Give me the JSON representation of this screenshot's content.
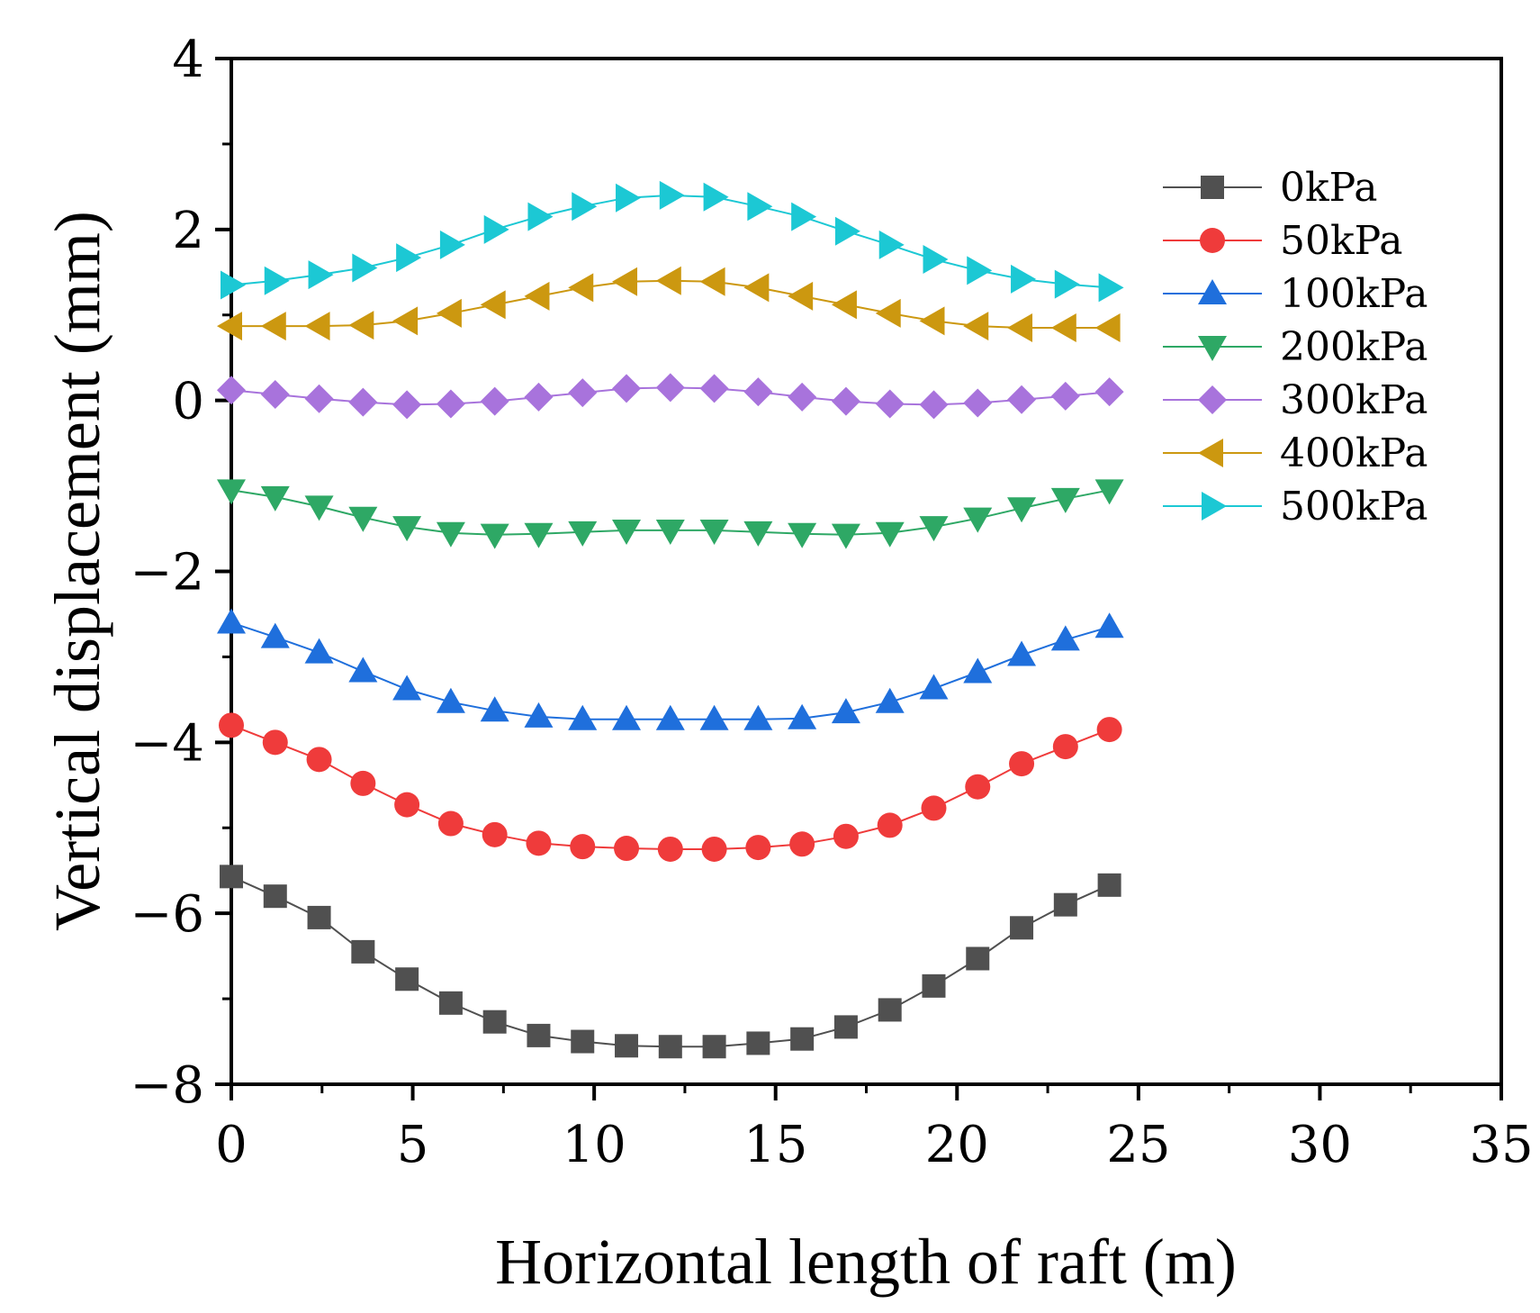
{
  "chart_data": {
    "type": "line",
    "title": "",
    "xlabel": "Horizontal length of raft (m)",
    "ylabel": "Vertical displacement (mm)",
    "xlim": [
      0,
      35
    ],
    "ylim": [
      -8,
      4
    ],
    "xticks": [
      0,
      5,
      10,
      15,
      20,
      25,
      30,
      35
    ],
    "xtick_labels": [
      "0",
      "5",
      "10",
      "15",
      "20",
      "25",
      "30",
      "35"
    ],
    "yticks": [
      -8,
      -6,
      -4,
      -2,
      0,
      2,
      4
    ],
    "ytick_labels": [
      "−8",
      "−6",
      "−4",
      "−2",
      "0",
      "2",
      "4"
    ],
    "grid": false,
    "legend_position": "top-right",
    "x": [
      0,
      1.21,
      2.42,
      3.63,
      4.84,
      6.05,
      7.26,
      8.47,
      9.68,
      10.89,
      12.1,
      13.31,
      14.52,
      15.73,
      16.94,
      18.15,
      19.36,
      20.57,
      21.78,
      22.99,
      24.2
    ],
    "series": [
      {
        "name": "0kPa",
        "color": "#505050",
        "marker": "square",
        "values": [
          -5.57,
          -5.8,
          -6.05,
          -6.45,
          -6.77,
          -7.05,
          -7.27,
          -7.43,
          -7.5,
          -7.55,
          -7.56,
          -7.56,
          -7.52,
          -7.47,
          -7.33,
          -7.13,
          -6.85,
          -6.53,
          -6.17,
          -5.9,
          -5.67
        ]
      },
      {
        "name": "50kPa",
        "color": "#ef3b3b",
        "marker": "circle",
        "values": [
          -3.8,
          -4.0,
          -4.2,
          -4.48,
          -4.73,
          -4.95,
          -5.08,
          -5.18,
          -5.22,
          -5.24,
          -5.25,
          -5.25,
          -5.23,
          -5.19,
          -5.1,
          -4.97,
          -4.77,
          -4.52,
          -4.25,
          -4.05,
          -3.85
        ]
      },
      {
        "name": "100kPa",
        "color": "#1f6fdc",
        "marker": "triangle-up",
        "values": [
          -2.6,
          -2.77,
          -2.95,
          -3.17,
          -3.38,
          -3.53,
          -3.63,
          -3.7,
          -3.73,
          -3.73,
          -3.73,
          -3.73,
          -3.73,
          -3.72,
          -3.65,
          -3.53,
          -3.37,
          -3.18,
          -2.98,
          -2.8,
          -2.65
        ]
      },
      {
        "name": "200kPa",
        "color": "#2ea865",
        "marker": "triangle-down",
        "values": [
          -1.05,
          -1.13,
          -1.24,
          -1.37,
          -1.48,
          -1.55,
          -1.57,
          -1.56,
          -1.54,
          -1.52,
          -1.52,
          -1.52,
          -1.54,
          -1.56,
          -1.57,
          -1.55,
          -1.48,
          -1.38,
          -1.26,
          -1.15,
          -1.05
        ]
      },
      {
        "name": "300kPa",
        "color": "#a873dc",
        "marker": "diamond",
        "values": [
          0.12,
          0.07,
          0.02,
          -0.02,
          -0.05,
          -0.04,
          -0.01,
          0.04,
          0.09,
          0.14,
          0.15,
          0.14,
          0.1,
          0.04,
          -0.01,
          -0.04,
          -0.05,
          -0.03,
          0.01,
          0.05,
          0.1
        ]
      },
      {
        "name": "400kPa",
        "color": "#cc9810",
        "marker": "triangle-left",
        "values": [
          0.87,
          0.87,
          0.87,
          0.88,
          0.93,
          1.02,
          1.12,
          1.22,
          1.32,
          1.39,
          1.4,
          1.39,
          1.32,
          1.22,
          1.12,
          1.02,
          0.93,
          0.87,
          0.85,
          0.85,
          0.85
        ]
      },
      {
        "name": "500kPa",
        "color": "#1cc8d4",
        "marker": "triangle-right",
        "values": [
          1.35,
          1.4,
          1.47,
          1.55,
          1.67,
          1.82,
          2.0,
          2.15,
          2.27,
          2.37,
          2.4,
          2.38,
          2.27,
          2.15,
          1.98,
          1.82,
          1.65,
          1.52,
          1.42,
          1.36,
          1.32
        ]
      }
    ]
  }
}
